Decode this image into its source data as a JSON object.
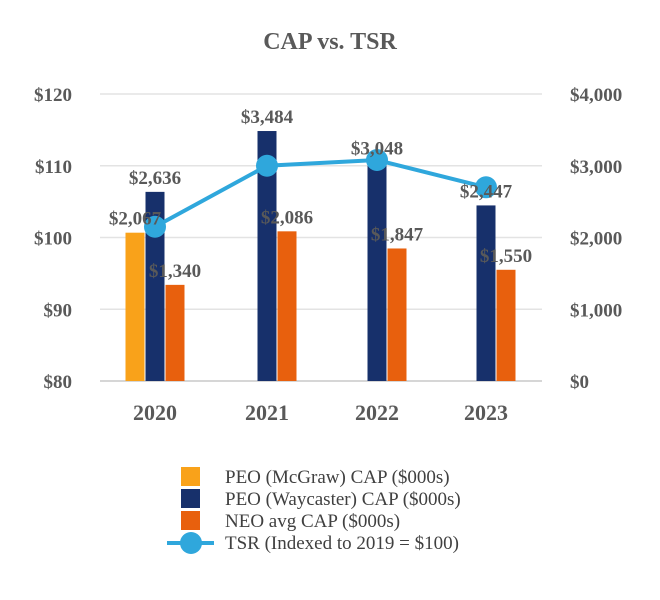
{
  "chart_data": {
    "type": "bar",
    "title": "CAP vs. TSR",
    "categories": [
      "2020",
      "2021",
      "2022",
      "2023"
    ],
    "y_left": {
      "min": 80,
      "max": 120,
      "ticks": [
        80,
        90,
        100,
        110,
        120
      ],
      "format": "$",
      "tick_labels": [
        "$80",
        "$90",
        "$100",
        "$110",
        "$120"
      ]
    },
    "y_right": {
      "min": 0,
      "max": 4000,
      "ticks": [
        0,
        1000,
        2000,
        3000,
        4000
      ],
      "format": "$",
      "tick_labels": [
        "$0",
        "$1,000",
        "$2,000",
        "$3,000",
        "$4,000"
      ]
    },
    "grid": true,
    "legend_position": "bottom",
    "series": [
      {
        "name": "PEO (McGraw) CAP ($000s)",
        "type": "bar",
        "axis": "right",
        "color": "#F9A21A",
        "values": [
          2067,
          null,
          null,
          null
        ],
        "labels": [
          "$2,067",
          "",
          "",
          ""
        ]
      },
      {
        "name": "PEO (Waycaster) CAP ($000s)",
        "type": "bar",
        "axis": "right",
        "color": "#17306B",
        "values": [
          2636,
          3484,
          3048,
          2447
        ],
        "labels": [
          "$2,636",
          "$3,484",
          "$3,048",
          "$2,447"
        ]
      },
      {
        "name": "NEO avg CAP ($000s)",
        "type": "bar",
        "axis": "right",
        "color": "#E8600D",
        "values": [
          1340,
          2086,
          1847,
          1550
        ],
        "labels": [
          "$1,340",
          "$2,086",
          "$1,847",
          "$1,550"
        ]
      },
      {
        "name": "TSR (Indexed to 2019 = $100)",
        "type": "line",
        "axis": "left",
        "color": "#2FA7DC",
        "values": [
          101.5,
          110.0,
          110.8,
          107.0
        ]
      }
    ]
  }
}
